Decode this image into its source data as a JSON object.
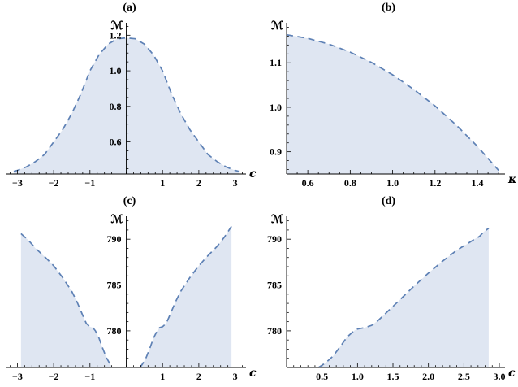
{
  "colors": {
    "curve": "#5e81b5",
    "fill": "#dfe6f2",
    "axis": "#000000"
  },
  "chart_data": [
    {
      "type": "area",
      "panel_label": "(a)",
      "title": "",
      "xlabel": "c",
      "ylabel": "ℳ",
      "xlim": [
        -3.3,
        3.3
      ],
      "ylim": [
        0.42,
        1.27
      ],
      "x_ticks": {
        "values": [
          -3,
          -2,
          -1,
          1,
          2,
          3
        ],
        "labels": [
          "−3",
          "−2",
          "−1",
          "1",
          "2",
          "3"
        ]
      },
      "y_ticks": {
        "values": [
          0.6,
          0.8,
          1.0,
          1.2
        ],
        "labels": [
          "0.6",
          "0.8",
          "1.0",
          "1.2"
        ]
      },
      "x_minor_step": 0.2,
      "y_minor_step": 0.05,
      "y_axis_x": 0,
      "xlabel_dy": 4,
      "grid": false,
      "line_style": "dashed",
      "series": [
        {
          "name": "M(c)",
          "x": [
            -3.1,
            -3.0,
            -2.75,
            -2.5,
            -2.25,
            -2.0,
            -1.75,
            -1.5,
            -1.25,
            -1.0,
            -0.75,
            -0.5,
            -0.25,
            0.0,
            0.25,
            0.5,
            0.75,
            1.0,
            1.25,
            1.5,
            1.75,
            2.0,
            2.25,
            2.5,
            2.75,
            3.0,
            3.1
          ],
          "y": [
            0.435,
            0.44,
            0.46,
            0.49,
            0.53,
            0.6,
            0.67,
            0.76,
            0.87,
            1.0,
            1.09,
            1.15,
            1.18,
            1.185,
            1.18,
            1.15,
            1.09,
            1.0,
            0.87,
            0.76,
            0.67,
            0.6,
            0.53,
            0.49,
            0.46,
            0.44,
            0.435
          ]
        }
      ]
    },
    {
      "type": "area",
      "panel_label": "(b)",
      "title": "",
      "xlabel": "κ",
      "ylabel": "ℳ",
      "xlim": [
        0.5,
        1.53
      ],
      "ylim": [
        0.85,
        1.19
      ],
      "x_ticks": {
        "values": [
          0.6,
          0.8,
          1.0,
          1.2,
          1.4
        ],
        "labels": [
          "0.6",
          "0.8",
          "1.0",
          "1.2",
          "1.4"
        ]
      },
      "y_ticks": {
        "values": [
          0.9,
          1.0,
          1.1
        ],
        "labels": [
          "0.9",
          "1.0",
          "1.1"
        ]
      },
      "x_minor_step": 0.05,
      "y_minor_step": 0.02,
      "y_axis_x": 0.5,
      "xlabel_dy": 11,
      "grid": false,
      "line_style": "dashed",
      "series": [
        {
          "name": "M(kappa)",
          "x": [
            0.5,
            0.6,
            0.7,
            0.8,
            0.9,
            1.0,
            1.1,
            1.2,
            1.3,
            1.4,
            1.5
          ],
          "y": [
            1.163,
            1.155,
            1.142,
            1.124,
            1.101,
            1.073,
            1.04,
            1.003,
            0.96,
            0.912,
            0.858
          ]
        }
      ]
    },
    {
      "type": "area",
      "panel_label": "(c)",
      "title": "",
      "xlabel": "c",
      "ylabel": "ℳ",
      "xlim": [
        -3.3,
        3.3
      ],
      "ylim": [
        776,
        792.5
      ],
      "x_ticks": {
        "values": [
          -3,
          -2,
          -1,
          1,
          2,
          3
        ],
        "labels": [
          "−3",
          "−2",
          "−1",
          "1",
          "2",
          "3"
        ]
      },
      "y_ticks": {
        "values": [
          780,
          785,
          790
        ],
        "labels": [
          "780",
          "785",
          "790"
        ]
      },
      "x_minor_step": 0.2,
      "y_minor_step": 1,
      "y_axis_x": 0,
      "xlabel_dy": 11,
      "grid": false,
      "line_style": "dashed",
      "series": [
        {
          "name": "M(c) left branch",
          "x": [
            -2.9,
            -2.7,
            -2.5,
            -2.25,
            -2.0,
            -1.75,
            -1.5,
            -1.35,
            -1.2,
            -1.1,
            -1.0,
            -0.92,
            -0.85,
            -0.75,
            -0.65,
            -0.55,
            -0.45,
            -0.38
          ],
          "y": [
            790.6,
            789.9,
            789.0,
            788.1,
            787.1,
            785.8,
            784.3,
            783.1,
            781.7,
            780.8,
            780.45,
            780.35,
            780.0,
            779.2,
            778.1,
            777.1,
            776.4,
            776.0
          ]
        },
        {
          "name": "M(c) right branch",
          "x": [
            0.38,
            0.45,
            0.55,
            0.65,
            0.75,
            0.85,
            0.92,
            1.0,
            1.1,
            1.2,
            1.35,
            1.5,
            1.75,
            2.0,
            2.25,
            2.5,
            2.7,
            2.9
          ],
          "y": [
            776.0,
            776.4,
            777.1,
            778.1,
            779.2,
            780.0,
            780.35,
            780.45,
            780.8,
            781.7,
            783.1,
            784.3,
            785.8,
            787.1,
            788.2,
            789.2,
            790.2,
            791.4
          ]
        }
      ]
    },
    {
      "type": "area",
      "panel_label": "(d)",
      "title": "",
      "xlabel": "c",
      "ylabel": "ℳ",
      "xlim": [
        0,
        3.08
      ],
      "ylim": [
        776,
        792.5
      ],
      "x_ticks": {
        "values": [
          0.5,
          1.0,
          1.5,
          2.0,
          2.5,
          3.0
        ],
        "labels": [
          "0.5",
          "1.0",
          "1.5",
          "2.0",
          "2.5",
          "3.0"
        ]
      },
      "y_ticks": {
        "values": [
          780,
          785,
          790
        ],
        "labels": [
          "780",
          "785",
          "790"
        ]
      },
      "x_minor_step": 0.1,
      "y_minor_step": 1,
      "y_axis_x": 0,
      "xlabel_dy": 11,
      "grid": false,
      "line_style": "dashed",
      "series": [
        {
          "name": "M(c)",
          "x": [
            0.45,
            0.55,
            0.65,
            0.75,
            0.85,
            0.95,
            1.0,
            1.1,
            1.2,
            1.3,
            1.45,
            1.6,
            1.8,
            2.0,
            2.2,
            2.4,
            2.55,
            2.65,
            2.72,
            2.78,
            2.85
          ],
          "y": [
            776.0,
            776.5,
            777.2,
            778.2,
            779.3,
            780.0,
            780.2,
            780.35,
            780.6,
            781.2,
            782.3,
            783.4,
            784.9,
            786.3,
            787.6,
            788.8,
            789.5,
            790.0,
            790.3,
            790.8,
            791.2
          ]
        }
      ]
    }
  ]
}
